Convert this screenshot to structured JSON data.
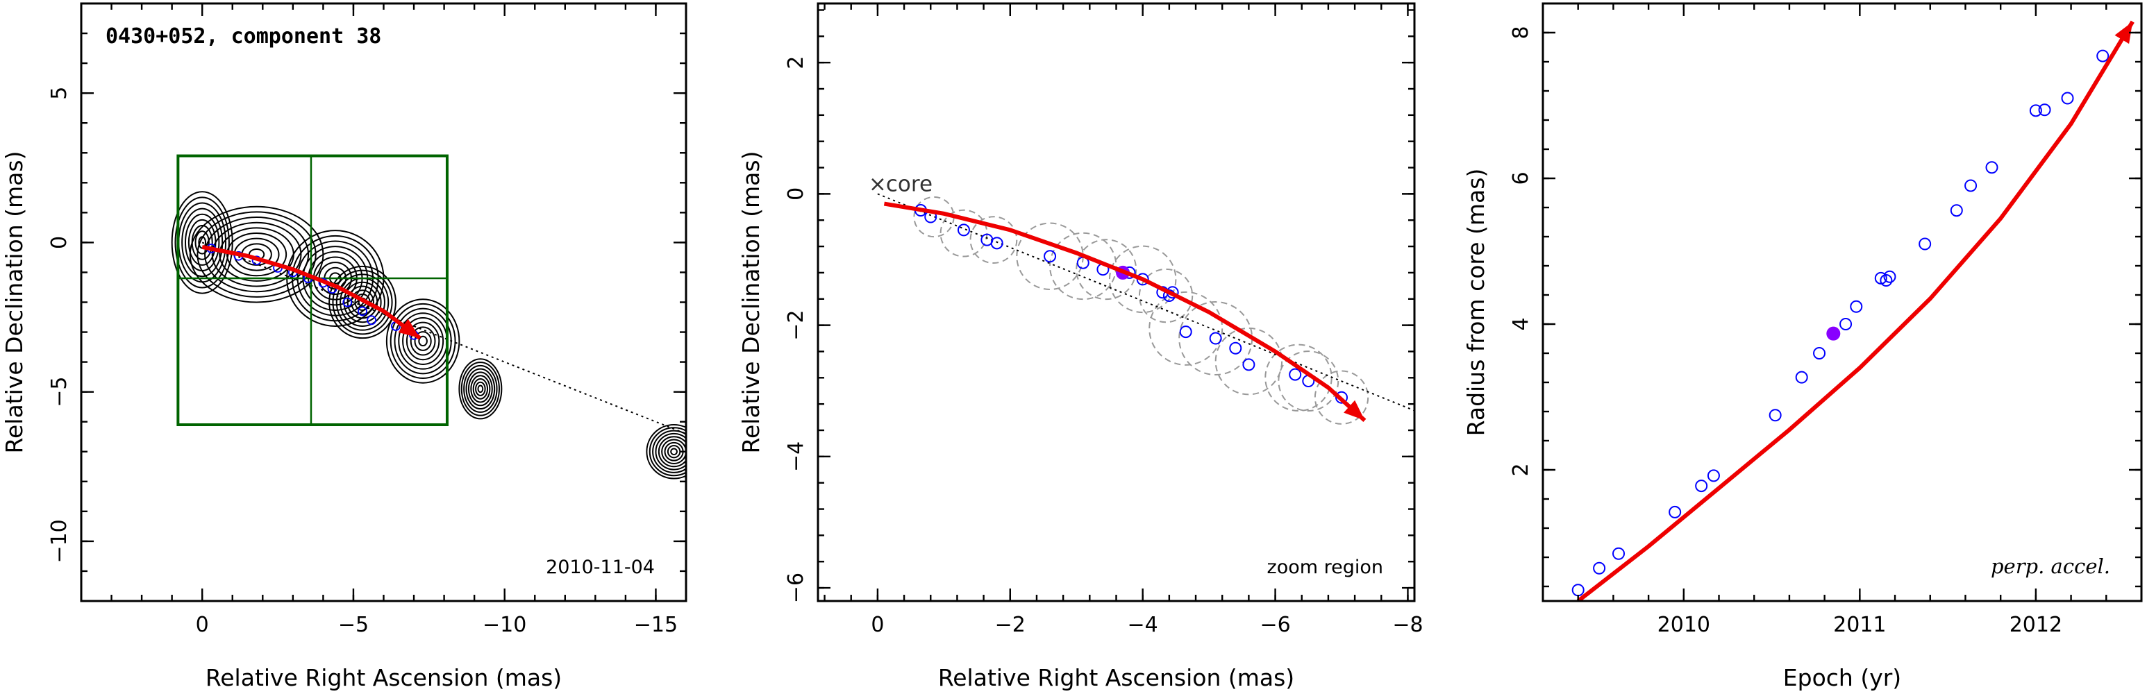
{
  "chart_data": [
    {
      "type": "contour-map",
      "title": "0430+052, component 38",
      "xlabel": "Relative Right Ascension (mas)",
      "ylabel": "Relative Declination (mas)",
      "xlim": [
        4.0,
        -16.0
      ],
      "ylim": [
        -12.0,
        8.0
      ],
      "xticks": [
        0,
        -5,
        -10,
        -15
      ],
      "yticks": [
        -10,
        -5,
        0,
        5
      ],
      "annotation": "2010-11-04",
      "contour_sources": [
        {
          "x": 0.0,
          "y": 0.0,
          "rx": 1.0,
          "ry": 1.7
        },
        {
          "x": -1.8,
          "y": -0.4,
          "rx": 2.2,
          "ry": 1.6
        },
        {
          "x": -4.4,
          "y": -1.2,
          "rx": 1.6,
          "ry": 1.6
        },
        {
          "x": -5.3,
          "y": -2.0,
          "rx": 1.1,
          "ry": 1.2
        },
        {
          "x": -7.3,
          "y": -3.3,
          "rx": 1.2,
          "ry": 1.4
        },
        {
          "x": -9.2,
          "y": -4.9,
          "rx": 0.7,
          "ry": 1.0
        },
        {
          "x": -15.6,
          "y": -7.0,
          "rx": 0.9,
          "ry": 0.9
        }
      ],
      "contour_levels": 9,
      "boxes": [
        {
          "x1": 0.8,
          "x2": -8.1,
          "y1": 2.9,
          "y2": -6.1,
          "color": "#006400"
        }
      ],
      "grid_lines": {
        "x": [
          -3.6
        ],
        "y": [
          -1.2
        ],
        "color": "#006400"
      },
      "dotted_line": {
        "from": [
          0.0,
          0.0
        ],
        "to": [
          -16.0,
          -6.4
        ]
      },
      "trajectory": [
        [
          0.0,
          -0.15
        ],
        [
          -1.5,
          -0.45
        ],
        [
          -3.0,
          -0.9
        ],
        [
          -4.5,
          -1.5
        ],
        [
          -6.0,
          -2.3
        ],
        [
          -7.2,
          -3.2
        ]
      ],
      "points": [
        {
          "x": -0.3,
          "y": -0.2
        },
        {
          "x": -1.2,
          "y": -0.45
        },
        {
          "x": -1.8,
          "y": -0.6
        },
        {
          "x": -2.5,
          "y": -0.85
        },
        {
          "x": -3.0,
          "y": -1.0
        },
        {
          "x": -3.5,
          "y": -1.2
        },
        {
          "x": -4.0,
          "y": -1.35
        },
        {
          "x": -4.3,
          "y": -1.55
        },
        {
          "x": -4.8,
          "y": -2.0
        },
        {
          "x": -5.3,
          "y": -2.3
        },
        {
          "x": -5.6,
          "y": -2.6
        },
        {
          "x": -6.4,
          "y": -2.8
        },
        {
          "x": -7.0,
          "y": -3.1
        }
      ]
    },
    {
      "type": "scatter",
      "xlabel": "Relative Right Ascension (mas)",
      "ylabel": "Relative Declination (mas)",
      "xlim": [
        0.9,
        -8.1
      ],
      "ylim": [
        -6.2,
        2.9
      ],
      "xticks": [
        0,
        -2,
        -4,
        -6,
        -8
      ],
      "yticks": [
        -6,
        -4,
        -2,
        0,
        2
      ],
      "annotation": "zoom region",
      "core_label": "core",
      "dotted_line": {
        "from": [
          0.0,
          0.0
        ],
        "to": [
          -8.1,
          -3.3
        ]
      },
      "trajectory": [
        [
          -0.1,
          -0.15
        ],
        [
          -1.0,
          -0.3
        ],
        [
          -2.0,
          -0.55
        ],
        [
          -3.0,
          -0.9
        ],
        [
          -4.0,
          -1.3
        ],
        [
          -5.0,
          -1.8
        ],
        [
          -6.0,
          -2.4
        ],
        [
          -6.8,
          -2.95
        ],
        [
          -7.35,
          -3.45
        ]
      ],
      "gray_circles": [
        {
          "x": -0.85,
          "y": -0.35,
          "r": 0.3
        },
        {
          "x": -1.3,
          "y": -0.6,
          "r": 0.35
        },
        {
          "x": -1.75,
          "y": -0.7,
          "r": 0.35
        },
        {
          "x": -2.6,
          "y": -0.95,
          "r": 0.5
        },
        {
          "x": -3.1,
          "y": -1.1,
          "r": 0.5
        },
        {
          "x": -3.45,
          "y": -1.15,
          "r": 0.45
        },
        {
          "x": -4.0,
          "y": -1.3,
          "r": 0.5
        },
        {
          "x": -4.35,
          "y": -1.55,
          "r": 0.4
        },
        {
          "x": -4.65,
          "y": -2.05,
          "r": 0.55
        },
        {
          "x": -5.1,
          "y": -2.2,
          "r": 0.55
        },
        {
          "x": -5.6,
          "y": -2.55,
          "r": 0.5
        },
        {
          "x": -6.35,
          "y": -2.8,
          "r": 0.5
        },
        {
          "x": -6.5,
          "y": -2.85,
          "r": 0.45
        },
        {
          "x": -7.0,
          "y": -3.1,
          "r": 0.4
        }
      ],
      "points": [
        {
          "x": -0.65,
          "y": -0.25
        },
        {
          "x": -0.8,
          "y": -0.35
        },
        {
          "x": -1.3,
          "y": -0.55
        },
        {
          "x": -1.65,
          "y": -0.7
        },
        {
          "x": -1.8,
          "y": -0.75
        },
        {
          "x": -2.6,
          "y": -0.95
        },
        {
          "x": -3.1,
          "y": -1.05
        },
        {
          "x": -3.4,
          "y": -1.15
        },
        {
          "x": -3.8,
          "y": -1.2
        },
        {
          "x": -4.0,
          "y": -1.3
        },
        {
          "x": -4.3,
          "y": -1.5
        },
        {
          "x": -4.4,
          "y": -1.55
        },
        {
          "x": -4.45,
          "y": -1.5
        },
        {
          "x": -4.65,
          "y": -2.1
        },
        {
          "x": -5.1,
          "y": -2.2
        },
        {
          "x": -5.4,
          "y": -2.35
        },
        {
          "x": -5.6,
          "y": -2.6
        },
        {
          "x": -6.3,
          "y": -2.75
        },
        {
          "x": -6.5,
          "y": -2.85
        },
        {
          "x": -7.0,
          "y": -3.1
        }
      ],
      "highlight": {
        "x": -3.7,
        "y": -1.2
      },
      "colors": {
        "trajectory": "#ee0000",
        "points": "#0000ff",
        "highlight": "#8800ff",
        "circles": "#999999"
      }
    },
    {
      "type": "scatter",
      "xlabel": "Epoch (yr)",
      "ylabel": "Radius from core (mas)",
      "xlim": [
        2009.2,
        2012.6
      ],
      "ylim": [
        0.2,
        8.4
      ],
      "xticks": [
        2010,
        2011,
        2012
      ],
      "yticks": [
        2,
        4,
        6,
        8
      ],
      "annotation": "perp. accel.",
      "trajectory": [
        [
          2009.4,
          0.2
        ],
        [
          2009.8,
          0.95
        ],
        [
          2010.2,
          1.75
        ],
        [
          2010.6,
          2.55
        ],
        [
          2011.0,
          3.4
        ],
        [
          2011.4,
          4.35
        ],
        [
          2011.8,
          5.45
        ],
        [
          2012.2,
          6.75
        ],
        [
          2012.55,
          8.15
        ]
      ],
      "points": [
        {
          "x": 2009.4,
          "y": 0.35
        },
        {
          "x": 2009.52,
          "y": 0.65
        },
        {
          "x": 2009.63,
          "y": 0.85
        },
        {
          "x": 2009.95,
          "y": 1.42
        },
        {
          "x": 2010.1,
          "y": 1.78
        },
        {
          "x": 2010.17,
          "y": 1.92
        },
        {
          "x": 2010.52,
          "y": 2.75
        },
        {
          "x": 2010.67,
          "y": 3.27
        },
        {
          "x": 2010.77,
          "y": 3.6
        },
        {
          "x": 2010.92,
          "y": 4.0
        },
        {
          "x": 2010.98,
          "y": 4.24
        },
        {
          "x": 2011.12,
          "y": 4.63
        },
        {
          "x": 2011.15,
          "y": 4.6
        },
        {
          "x": 2011.17,
          "y": 4.65
        },
        {
          "x": 2011.37,
          "y": 5.1
        },
        {
          "x": 2011.55,
          "y": 5.56
        },
        {
          "x": 2011.63,
          "y": 5.9
        },
        {
          "x": 2011.75,
          "y": 6.15
        },
        {
          "x": 2012.0,
          "y": 6.93
        },
        {
          "x": 2012.05,
          "y": 6.94
        },
        {
          "x": 2012.18,
          "y": 7.1
        },
        {
          "x": 2012.38,
          "y": 7.68
        }
      ],
      "highlight": {
        "x": 2010.85,
        "y": 3.87
      },
      "colors": {
        "trajectory": "#ee0000",
        "points": "#0000ff",
        "highlight": "#8800ff"
      }
    }
  ]
}
